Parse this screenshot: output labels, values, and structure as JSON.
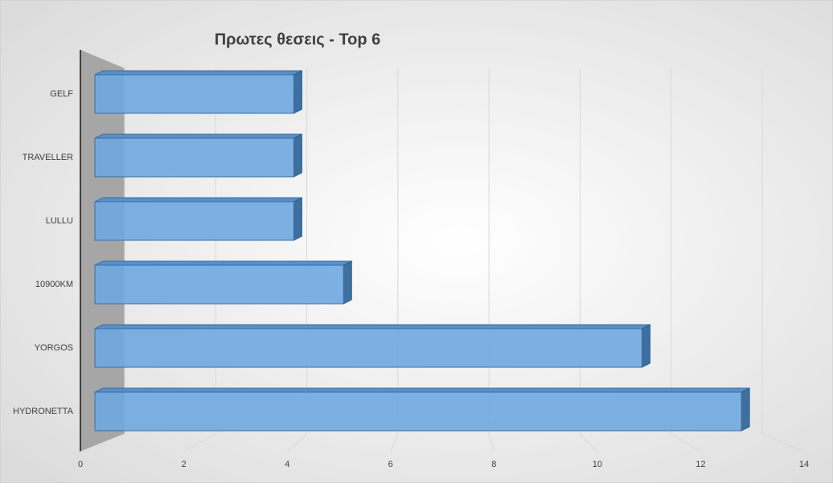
{
  "chart_data": {
    "type": "bar3d",
    "title": "Πρωτες θεσεις - Top 6",
    "categories": [
      "GELF",
      "TRAVELLER",
      "LULLU",
      "10900KM",
      "YORGOS",
      "HYDRONETTA"
    ],
    "values": [
      4,
      4,
      4,
      5,
      11,
      13
    ],
    "color": "#6fa8e0",
    "xlim": [
      0,
      14
    ],
    "xticks": [
      0,
      2,
      4,
      6,
      8,
      10,
      12,
      14
    ],
    "grid": true
  }
}
